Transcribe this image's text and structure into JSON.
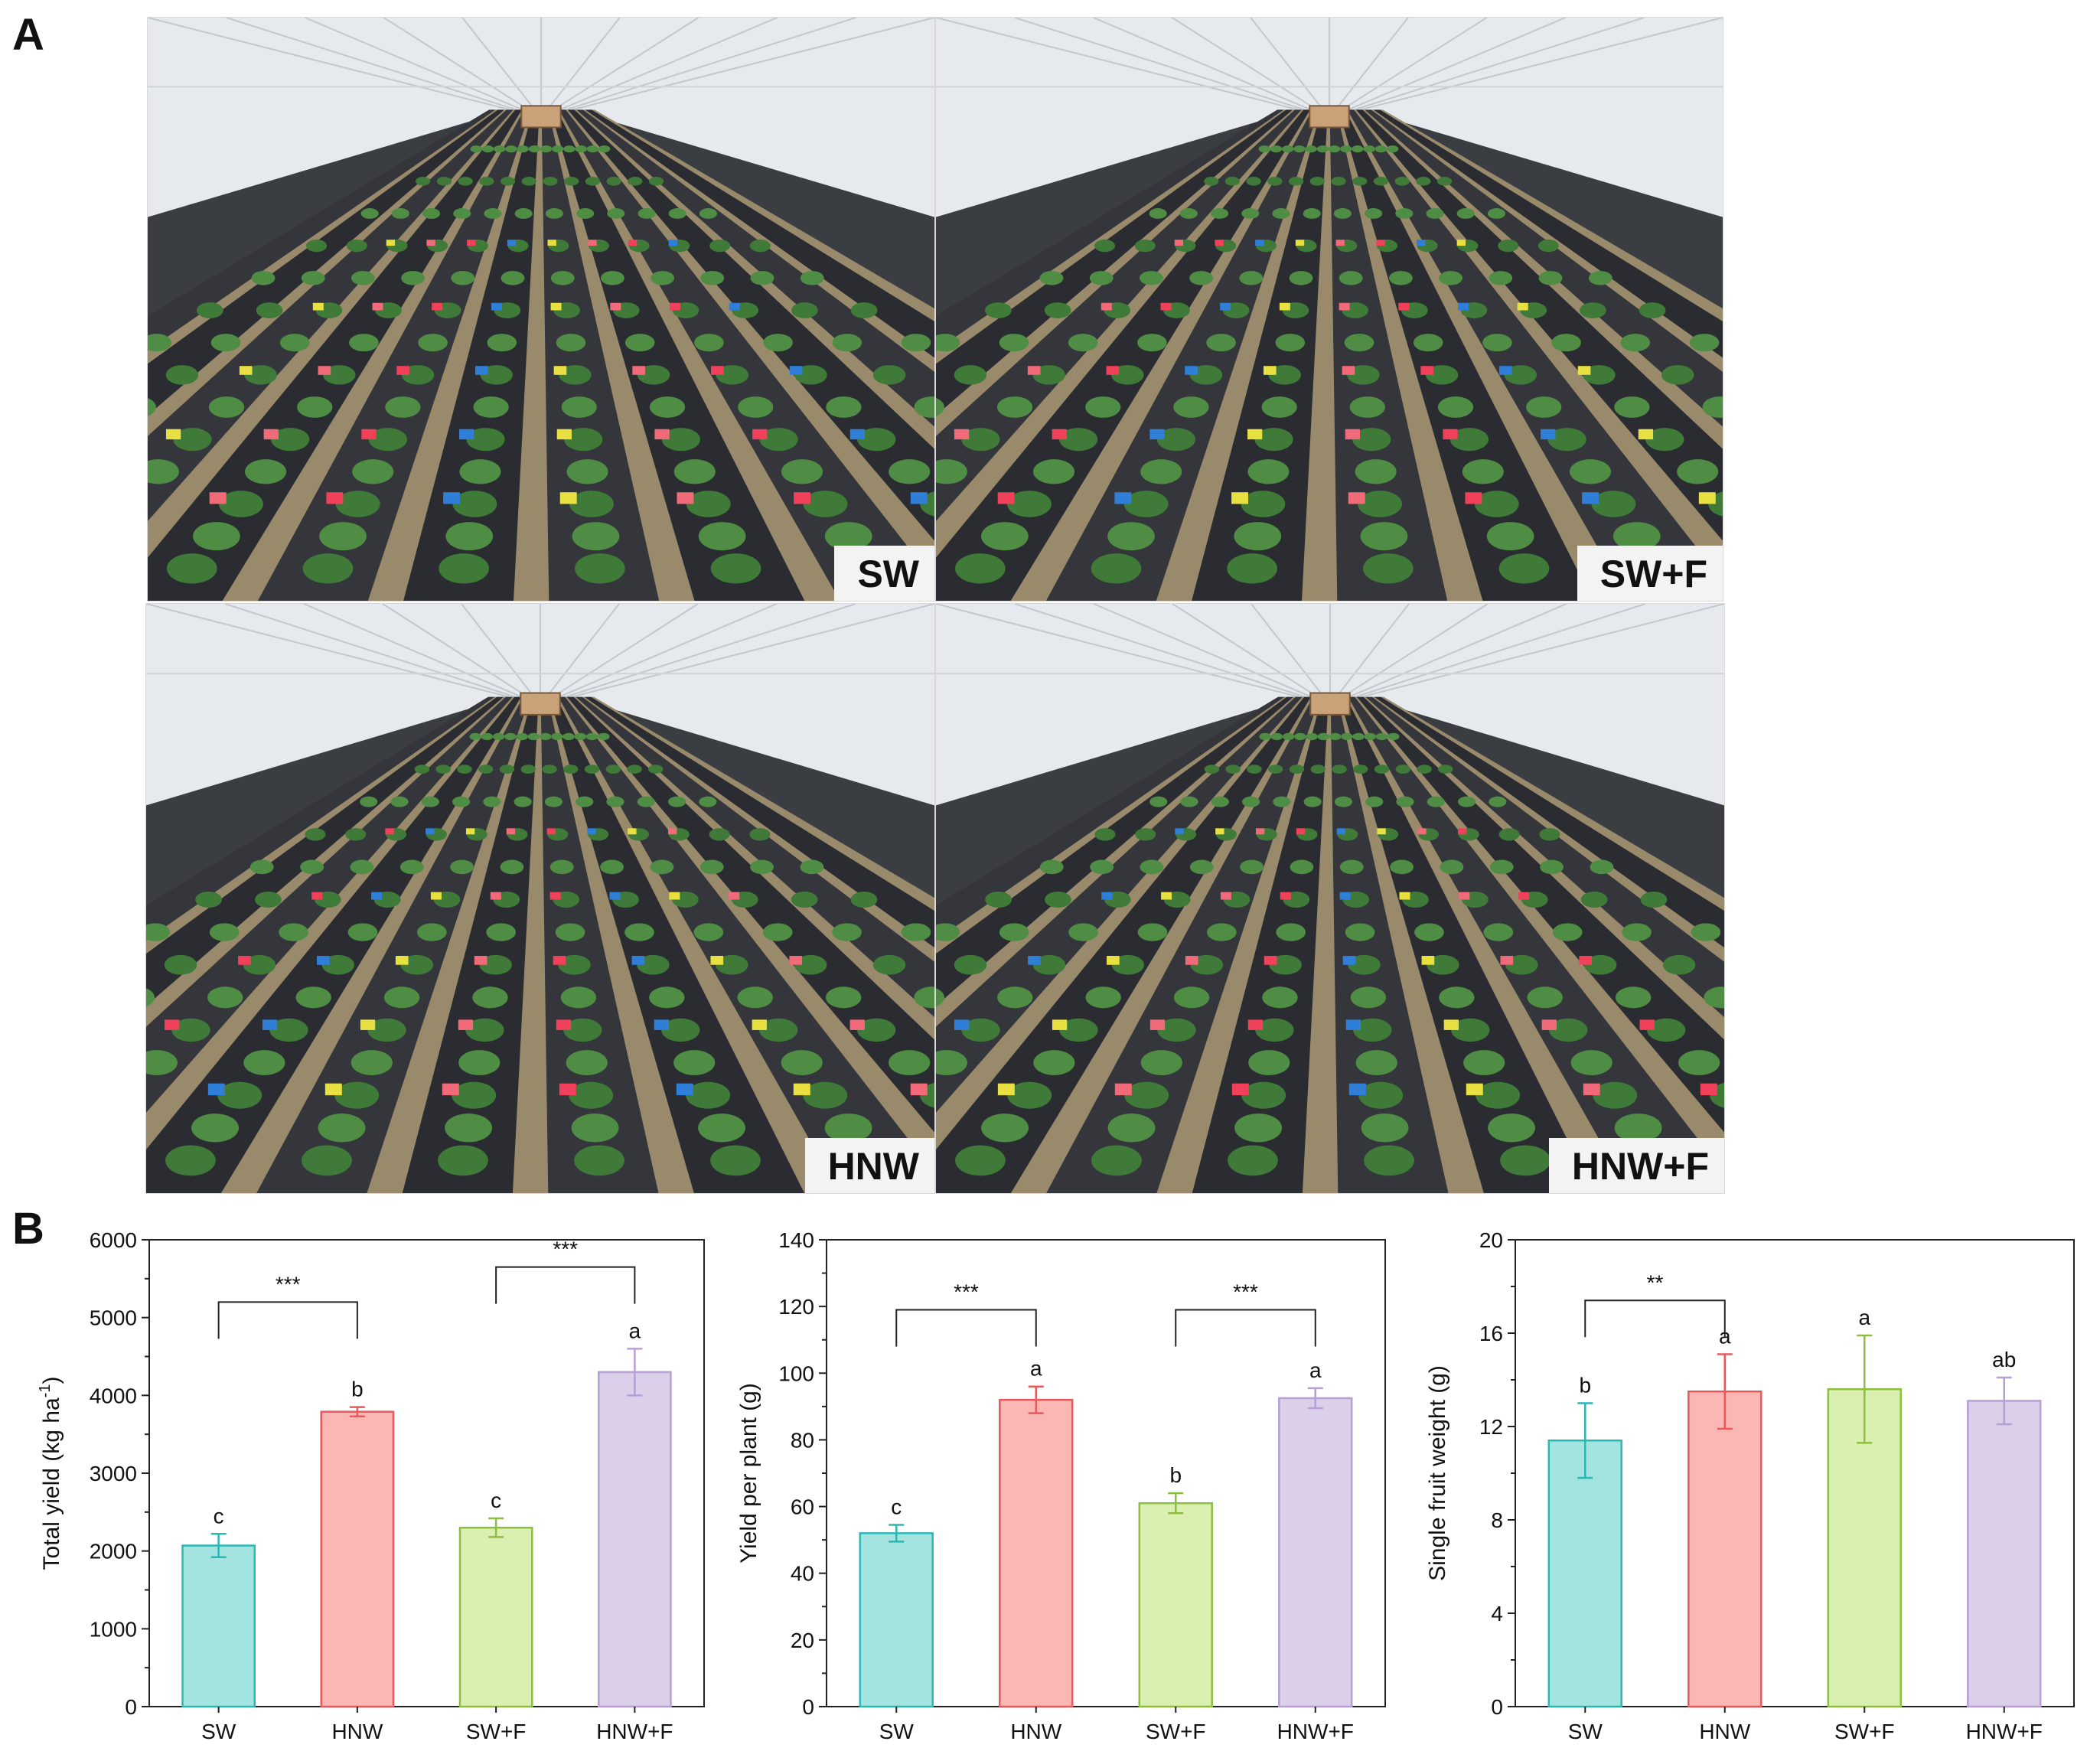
{
  "figure": {
    "panel_a_letter": "A",
    "panel_b_letter": "B"
  },
  "photos": [
    {
      "label": "SW"
    },
    {
      "label": "SW+F"
    },
    {
      "label": "HNW"
    },
    {
      "label": "HNW+F"
    }
  ],
  "colors": {
    "SW": {
      "fill": "#a4e4e0",
      "stroke": "#2bb8b3"
    },
    "HNW": {
      "fill": "#fbb7b4",
      "stroke": "#e8585c"
    },
    "SW+F": {
      "fill": "#d9f0b0",
      "stroke": "#8cbf3f"
    },
    "HNW+F": {
      "fill": "#dccfea",
      "stroke": "#b79fd6"
    }
  },
  "chart_data": [
    {
      "type": "bar",
      "categories": [
        "SW",
        "HNW",
        "SW+F",
        "HNW+F"
      ],
      "values": [
        2070,
        3790,
        2300,
        4300
      ],
      "errors": [
        150,
        60,
        120,
        300
      ],
      "letters": [
        "c",
        "b",
        "c",
        "a"
      ],
      "ylabel": "Total yield (kg ha",
      "ylabel_sup": "-1",
      "ylabel_tail": ")",
      "ylim": [
        0,
        6000
      ],
      "yticks": [
        0,
        1000,
        2000,
        3000,
        4000,
        5000,
        6000
      ],
      "brackets": [
        {
          "from": 0,
          "to": 1,
          "level": 5200,
          "label": "***"
        },
        {
          "from": 2,
          "to": 3,
          "level": 5650,
          "label": "***"
        }
      ]
    },
    {
      "type": "bar",
      "categories": [
        "SW",
        "HNW",
        "SW+F",
        "HNW+F"
      ],
      "values": [
        52,
        92,
        61,
        92.5
      ],
      "errors": [
        2.5,
        4,
        3,
        3
      ],
      "letters": [
        "c",
        "a",
        "b",
        "a"
      ],
      "ylabel": "Yield per plant (g)",
      "ylabel_sup": "",
      "ylabel_tail": "",
      "ylim": [
        0,
        140
      ],
      "yticks": [
        0,
        20,
        40,
        60,
        80,
        100,
        120,
        140
      ],
      "brackets": [
        {
          "from": 0,
          "to": 1,
          "level": 119,
          "label": "***"
        },
        {
          "from": 2,
          "to": 3,
          "level": 119,
          "label": "***"
        }
      ]
    },
    {
      "type": "bar",
      "categories": [
        "SW",
        "HNW",
        "SW+F",
        "HNW+F"
      ],
      "values": [
        11.4,
        13.5,
        13.6,
        13.1
      ],
      "errors": [
        1.6,
        1.6,
        2.3,
        1.0
      ],
      "letters": [
        "b",
        "a",
        "a",
        "ab"
      ],
      "ylabel": "Single fruit weight (g)",
      "ylabel_sup": "",
      "ylabel_tail": "",
      "ylim": [
        0,
        20
      ],
      "yticks": [
        0,
        4,
        8,
        12,
        16,
        20
      ],
      "brackets": [
        {
          "from": 0,
          "to": 1,
          "level": 17.4,
          "label": "**"
        }
      ]
    }
  ]
}
